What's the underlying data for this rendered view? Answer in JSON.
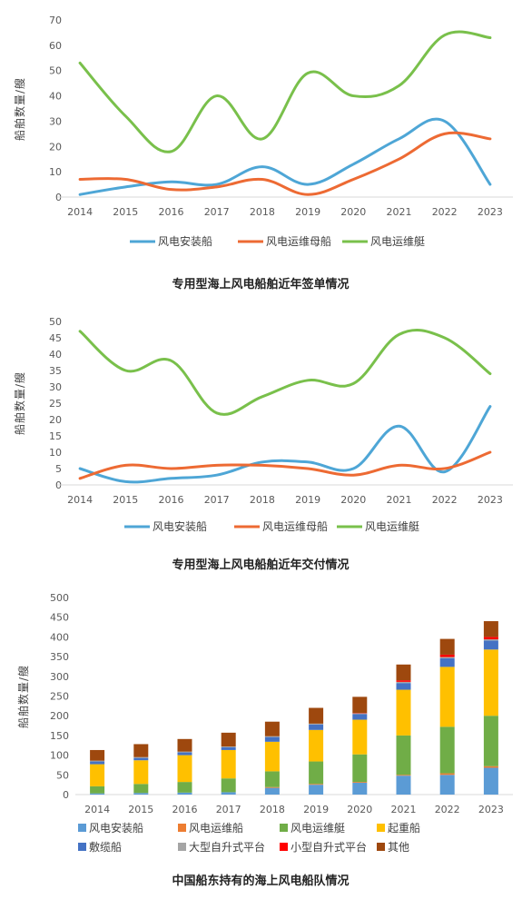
{
  "chart_data": [
    {
      "type": "line",
      "title": "专用型海上风电船舶近年签单情况",
      "ylabel": "船舶数量/艘",
      "xlabel": "",
      "categories": [
        "2014",
        "2015",
        "2016",
        "2017",
        "2018",
        "2019",
        "2020",
        "2021",
        "2022",
        "2023"
      ],
      "ylim": [
        0,
        70
      ],
      "yticks": [
        0,
        10,
        20,
        30,
        40,
        50,
        60,
        70
      ],
      "grid": false,
      "smooth": true,
      "legend_position": "bottom",
      "series": [
        {
          "name": "风电安装船",
          "color": "#4EA6D6",
          "values": [
            1,
            4,
            6,
            5,
            12,
            5,
            13,
            23,
            30,
            5
          ]
        },
        {
          "name": "风电运维母船",
          "color": "#ED6A33",
          "values": [
            7,
            7,
            3,
            4,
            7,
            1,
            7,
            15,
            25,
            23
          ]
        },
        {
          "name": "风电运维艇",
          "color": "#79C04B",
          "values": [
            53,
            32,
            18,
            40,
            23,
            49,
            40,
            44,
            64,
            63
          ]
        }
      ]
    },
    {
      "type": "line",
      "title": "专用型海上风电船舶近年交付情况",
      "ylabel": "船舶数量/艘",
      "xlabel": "",
      "categories": [
        "2014",
        "2015",
        "2016",
        "2017",
        "2018",
        "2019",
        "2020",
        "2021",
        "2022",
        "2023"
      ],
      "ylim": [
        0,
        50
      ],
      "yticks": [
        0,
        5,
        10,
        15,
        20,
        25,
        30,
        35,
        40,
        45,
        50
      ],
      "grid": false,
      "smooth": true,
      "legend_position": "bottom",
      "series": [
        {
          "name": "风电安装船",
          "color": "#4EA6D6",
          "values": [
            5,
            1,
            2,
            3,
            7,
            7,
            5,
            18,
            4,
            24
          ]
        },
        {
          "name": "风电运维母船",
          "color": "#ED6A33",
          "values": [
            2,
            6,
            5,
            6,
            6,
            5,
            3,
            6,
            5,
            10
          ]
        },
        {
          "name": "风电运维艇",
          "color": "#79C04B",
          "values": [
            47,
            35,
            38,
            22,
            27,
            32,
            31,
            46,
            45,
            34
          ]
        }
      ]
    },
    {
      "type": "bar",
      "stacked": true,
      "title": "中国船东持有的海上风电船队情况",
      "ylabel": "船舶数量/艘",
      "xlabel": "",
      "categories": [
        "2014",
        "2015",
        "2016",
        "2017",
        "2018",
        "2019",
        "2020",
        "2021",
        "2022",
        "2023"
      ],
      "ylim": [
        0,
        500
      ],
      "yticks": [
        0,
        50,
        100,
        150,
        200,
        250,
        300,
        350,
        400,
        450,
        500
      ],
      "grid": false,
      "legend_position": "bottom",
      "series": [
        {
          "name": "风电安装船",
          "color": "#5B9BD5",
          "values": [
            3,
            4,
            5,
            6,
            17,
            25,
            30,
            48,
            50,
            68
          ]
        },
        {
          "name": "风电运维船",
          "color": "#ED7D31",
          "values": [
            0,
            0,
            0,
            0,
            2,
            2,
            2,
            2,
            4,
            4
          ]
        },
        {
          "name": "风电运维艇",
          "color": "#70AD47",
          "values": [
            18,
            23,
            27,
            35,
            40,
            57,
            70,
            100,
            118,
            128
          ]
        },
        {
          "name": "起重船",
          "color": "#FFC000",
          "values": [
            56,
            60,
            68,
            72,
            75,
            80,
            88,
            116,
            152,
            168
          ]
        },
        {
          "name": "敷缆船",
          "color": "#4472C4",
          "values": [
            7,
            6,
            7,
            7,
            12,
            14,
            14,
            17,
            22,
            23
          ]
        },
        {
          "name": "大型自升式平台",
          "color": "#A5A5A5",
          "values": [
            2,
            2,
            2,
            2,
            2,
            2,
            2,
            3,
            3,
            3
          ]
        },
        {
          "name": "小型自升式平台",
          "color": "#FF0000",
          "values": [
            0,
            0,
            0,
            0,
            0,
            0,
            1,
            4,
            6,
            6
          ]
        },
        {
          "name": "其他",
          "color": "#9E480E",
          "values": [
            27,
            33,
            32,
            35,
            37,
            40,
            41,
            40,
            40,
            40
          ]
        }
      ]
    }
  ]
}
